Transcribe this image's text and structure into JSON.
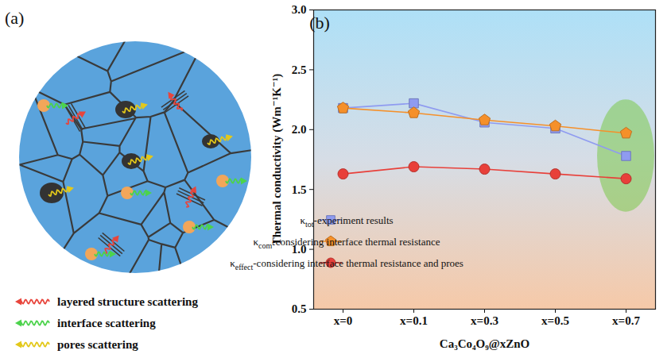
{
  "diagram": {
    "label": "(a)",
    "legend": [
      {
        "text": "layered structure scattering",
        "color": "#e8453c"
      },
      {
        "text": "interface scattering",
        "color": "#4cd34c"
      },
      {
        "text": "pores scattering",
        "color": "#e3c81a"
      }
    ]
  },
  "chart_data": {
    "type": "line",
    "title": "(b)",
    "x_label": "Ca₃Co₄O₉@xZnO",
    "y_label": "Thermal conductivity (Wm⁻¹K⁻¹)",
    "categories": [
      "x=0",
      "x=0.1",
      "x=0.3",
      "x=0.5",
      "x=0.7"
    ],
    "series": [
      {
        "name": "κtot-experiment results",
        "color": "#8f9bf0",
        "marker": "square",
        "values": [
          2.18,
          2.22,
          2.06,
          2.01,
          1.78
        ]
      },
      {
        "name": "κcom-considering interface thermal resistance",
        "color": "#f5902a",
        "marker": "pentagon",
        "values": [
          2.18,
          2.14,
          2.08,
          2.03,
          1.97
        ]
      },
      {
        "name": "κeffect-considering interface thermal resistance and proes",
        "color": "#e8403a",
        "marker": "circle",
        "values": [
          1.63,
          1.69,
          1.67,
          1.63,
          1.59
        ]
      }
    ],
    "ylim": [
      0.5,
      3.0
    ],
    "yticks": [
      0.5,
      {
        "value": 1,
        "label": "1.0"
      },
      1.5,
      {
        "value": 2,
        "label": "2.0"
      },
      2.5,
      {
        "value": 3,
        "label": "3.0"
      }
    ],
    "grid": false,
    "legend": "lower left"
  }
}
